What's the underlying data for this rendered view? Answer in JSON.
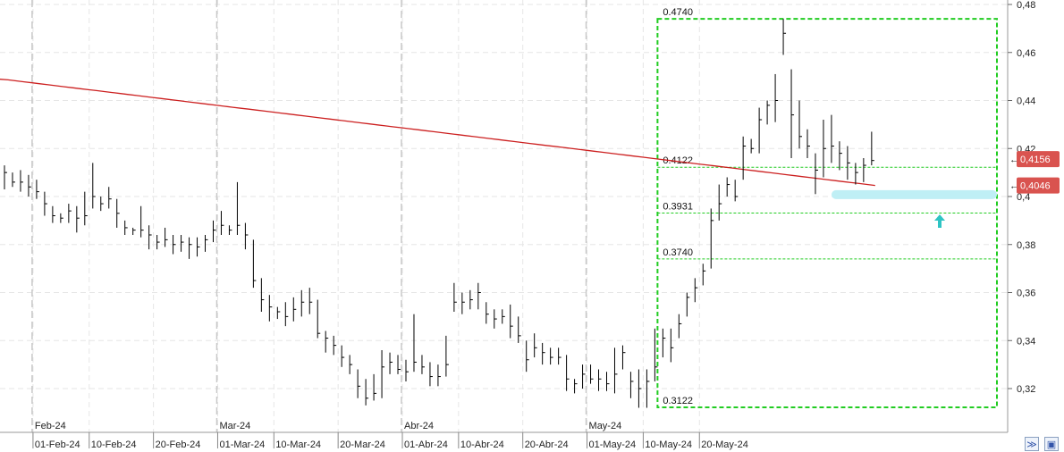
{
  "chart_data": {
    "type": "ohlc",
    "y_axis": {
      "min": 0.31,
      "max": 0.48,
      "ticks": [
        "0,32",
        "0,34",
        "0,36",
        "0,38",
        "0,4",
        "0,42",
        "0,44",
        "0,46",
        "0,48"
      ],
      "tick_values": [
        0.32,
        0.34,
        0.36,
        0.38,
        0.4,
        0.42,
        0.44,
        0.46,
        0.48
      ],
      "position": "right"
    },
    "x_axis": {
      "day_labels": [
        "01-Feb-24",
        "10-Feb-24",
        "20-Feb-24",
        "01-Mar-24",
        "10-Mar-24",
        "20-Mar-24",
        "01-Abr-24",
        "10-Abr-24",
        "20-Abr-24",
        "01-May-24",
        "10-May-24",
        "20-May-24"
      ],
      "day_label_bars": [
        4,
        11,
        19,
        27,
        34,
        42,
        50,
        57,
        65,
        73,
        80,
        87
      ],
      "month_labels": [
        "Feb-24",
        "Mar-24",
        "Abr-24",
        "May-24"
      ],
      "month_label_bars": [
        4,
        27,
        50,
        73
      ]
    },
    "bars": [
      [
        0.413,
        0.403,
        0.41
      ],
      [
        0.41,
        0.404,
        0.406
      ],
      [
        0.411,
        0.402,
        0.406
      ],
      [
        0.409,
        0.4,
        0.404
      ],
      [
        0.407,
        0.399,
        0.402
      ],
      [
        0.402,
        0.392,
        0.397
      ],
      [
        0.396,
        0.389,
        0.392
      ],
      [
        0.393,
        0.389,
        0.391
      ],
      [
        0.397,
        0.389,
        0.394
      ],
      [
        0.396,
        0.385,
        0.391
      ],
      [
        0.402,
        0.388,
        0.392
      ],
      [
        0.414,
        0.395,
        0.4
      ],
      [
        0.4,
        0.394,
        0.397
      ],
      [
        0.404,
        0.395,
        0.399
      ],
      [
        0.399,
        0.387,
        0.393
      ],
      [
        0.39,
        0.384,
        0.387
      ],
      [
        0.387,
        0.384,
        0.386
      ],
      [
        0.396,
        0.383,
        0.386
      ],
      [
        0.388,
        0.378,
        0.384
      ],
      [
        0.384,
        0.378,
        0.381
      ],
      [
        0.387,
        0.379,
        0.382
      ],
      [
        0.384,
        0.376,
        0.38
      ],
      [
        0.384,
        0.377,
        0.381
      ],
      [
        0.383,
        0.374,
        0.38
      ],
      [
        0.383,
        0.375,
        0.379
      ],
      [
        0.384,
        0.377,
        0.382
      ],
      [
        0.39,
        0.381,
        0.386
      ],
      [
        0.394,
        0.384,
        0.388
      ],
      [
        0.388,
        0.384,
        0.386
      ],
      [
        0.406,
        0.384,
        0.388
      ],
      [
        0.389,
        0.378,
        0.384
      ],
      [
        0.382,
        0.362,
        0.365
      ],
      [
        0.366,
        0.352,
        0.357
      ],
      [
        0.359,
        0.348,
        0.354
      ],
      [
        0.354,
        0.349,
        0.352
      ],
      [
        0.356,
        0.346,
        0.35
      ],
      [
        0.358,
        0.348,
        0.353
      ],
      [
        0.361,
        0.35,
        0.356
      ],
      [
        0.362,
        0.351,
        0.356
      ],
      [
        0.357,
        0.341,
        0.343
      ],
      [
        0.344,
        0.335,
        0.341
      ],
      [
        0.342,
        0.334,
        0.338
      ],
      [
        0.338,
        0.329,
        0.333
      ],
      [
        0.334,
        0.326,
        0.33
      ],
      [
        0.328,
        0.316,
        0.321
      ],
      [
        0.324,
        0.313,
        0.316
      ],
      [
        0.326,
        0.315,
        0.318
      ],
      [
        0.336,
        0.316,
        0.329
      ],
      [
        0.335,
        0.326,
        0.331
      ],
      [
        0.334,
        0.326,
        0.328
      ],
      [
        0.332,
        0.323,
        0.327
      ],
      [
        0.351,
        0.327,
        0.331
      ],
      [
        0.334,
        0.326,
        0.329
      ],
      [
        0.331,
        0.321,
        0.325
      ],
      [
        0.33,
        0.321,
        0.325
      ],
      [
        0.342,
        0.325,
        0.33
      ],
      [
        0.364,
        0.352,
        0.356
      ],
      [
        0.36,
        0.351,
        0.356
      ],
      [
        0.361,
        0.353,
        0.357
      ],
      [
        0.364,
        0.353,
        0.36
      ],
      [
        0.356,
        0.347,
        0.351
      ],
      [
        0.353,
        0.345,
        0.349
      ],
      [
        0.353,
        0.347,
        0.35
      ],
      [
        0.355,
        0.341,
        0.346
      ],
      [
        0.35,
        0.339,
        0.342
      ],
      [
        0.34,
        0.327,
        0.332
      ],
      [
        0.343,
        0.333,
        0.337
      ],
      [
        0.339,
        0.33,
        0.335
      ],
      [
        0.337,
        0.33,
        0.333
      ],
      [
        0.337,
        0.33,
        0.333
      ],
      [
        0.334,
        0.319,
        0.324
      ],
      [
        0.324,
        0.318,
        0.322
      ],
      [
        0.33,
        0.32,
        0.326
      ],
      [
        0.33,
        0.322,
        0.324
      ],
      [
        0.328,
        0.319,
        0.324
      ],
      [
        0.327,
        0.319,
        0.322
      ],
      [
        0.337,
        0.318,
        0.326
      ],
      [
        0.338,
        0.328,
        0.335
      ],
      [
        0.327,
        0.316,
        0.323
      ],
      [
        0.328,
        0.312,
        0.32
      ],
      [
        0.328,
        0.312,
        0.323
      ],
      [
        0.345,
        0.323,
        0.329
      ],
      [
        0.345,
        0.333,
        0.341
      ],
      [
        0.345,
        0.331,
        0.337
      ],
      [
        0.351,
        0.341,
        0.347
      ],
      [
        0.36,
        0.35,
        0.358
      ],
      [
        0.366,
        0.356,
        0.362
      ],
      [
        0.372,
        0.363,
        0.369
      ],
      [
        0.395,
        0.37,
        0.39
      ],
      [
        0.405,
        0.39,
        0.397
      ],
      [
        0.408,
        0.4,
        0.405
      ],
      [
        0.407,
        0.398,
        0.4
      ],
      [
        0.425,
        0.407,
        0.421
      ],
      [
        0.424,
        0.418,
        0.42
      ],
      [
        0.437,
        0.418,
        0.432
      ],
      [
        0.44,
        0.43,
        0.438
      ],
      [
        0.451,
        0.431,
        0.44
      ],
      [
        0.474,
        0.459,
        0.468
      ],
      [
        0.453,
        0.416,
        0.434
      ],
      [
        0.44,
        0.42,
        0.425
      ],
      [
        0.428,
        0.416,
        0.421
      ],
      [
        0.418,
        0.401,
        0.411
      ],
      [
        0.432,
        0.408,
        0.42
      ],
      [
        0.434,
        0.414,
        0.421
      ],
      [
        0.423,
        0.411,
        0.418
      ],
      [
        0.421,
        0.407,
        0.414
      ],
      [
        0.414,
        0.405,
        0.41
      ],
      [
        0.416,
        0.406,
        0.413
      ],
      [
        0.427,
        0.413,
        0.415
      ]
    ],
    "moving_average": {
      "color": "#cc2020",
      "start": 0.449,
      "end": 0.4046
    },
    "fibonacci": {
      "levels": [
        {
          "label": "0.4740",
          "value": 0.474
        },
        {
          "label": "0.4122",
          "value": 0.4122
        },
        {
          "label": "0.3931",
          "value": 0.3931
        },
        {
          "label": "0.3740",
          "value": 0.374
        },
        {
          "label": "0.3122",
          "value": 0.3122
        }
      ],
      "start_bar": 81,
      "color": "#22cc22"
    },
    "support_zone": {
      "value": 0.4008,
      "color": "#bfeff5"
    },
    "price_boxes": [
      {
        "label": "0,4156",
        "value": 0.4156,
        "color": "#d9534f"
      },
      {
        "label": "0,4046",
        "value": 0.4046,
        "color": "#d9534f"
      }
    ],
    "arrow_color": "#2ec4c4",
    "grid": true,
    "bar_color": "#000000"
  },
  "toolbar": {
    "expand_icon": "chevrons-icon",
    "save_icon": "save-icon"
  }
}
